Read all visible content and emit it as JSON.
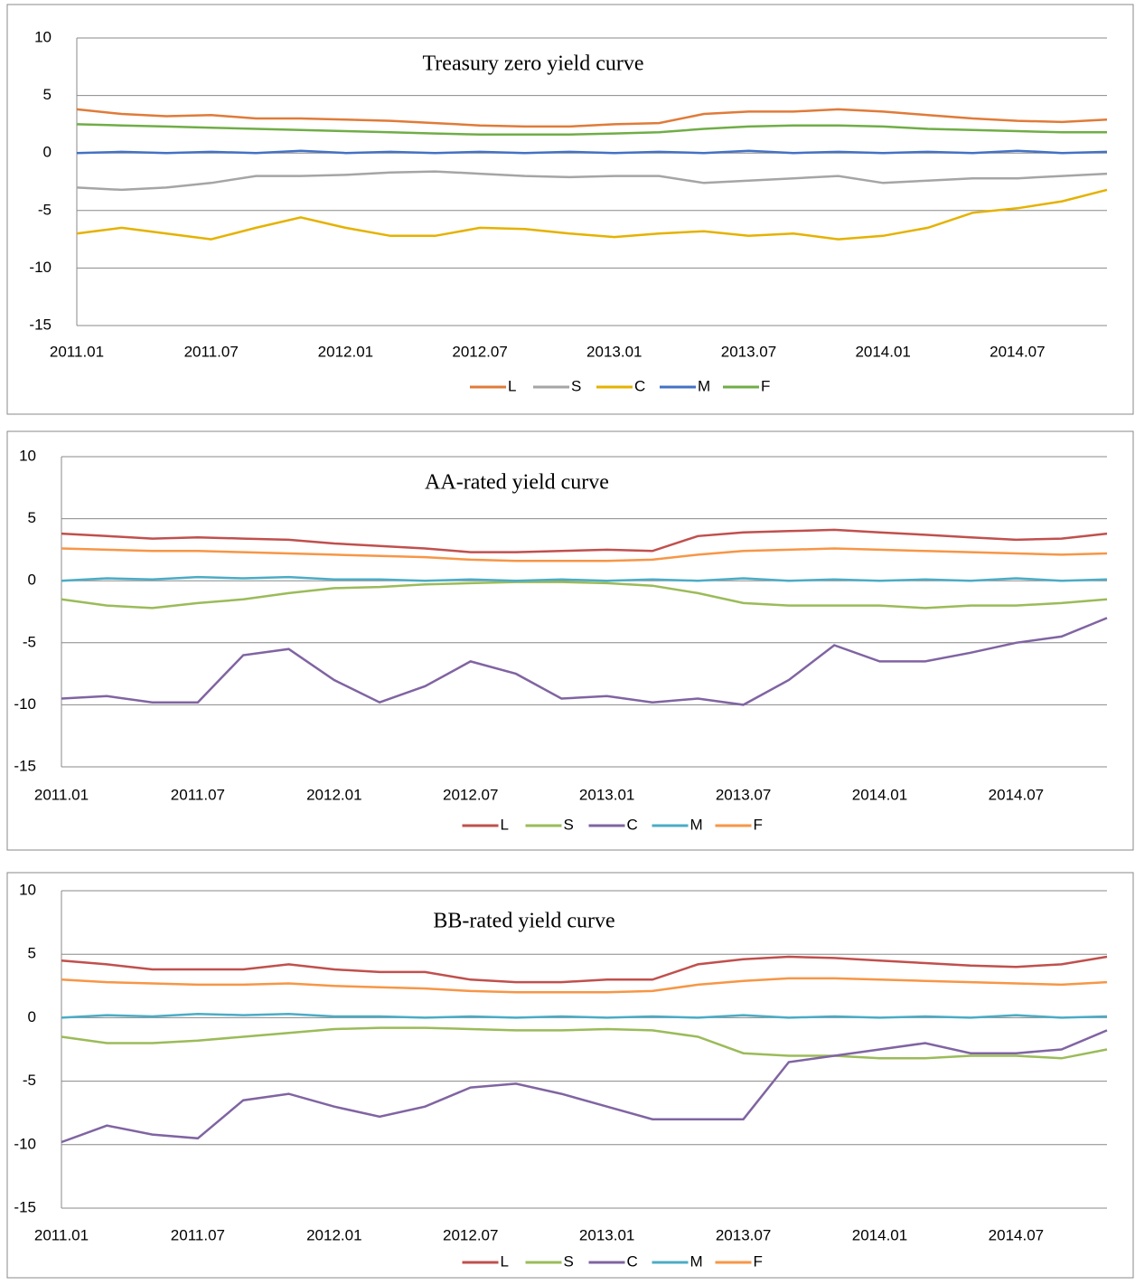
{
  "chart_data": [
    {
      "type": "line",
      "title": "Treasury zero yield curve",
      "categories": [
        "2011.01",
        null,
        null,
        "2011.07",
        null,
        null,
        "2012.01",
        null,
        null,
        "2012.07",
        null,
        null,
        "2013.01",
        null,
        null,
        "2013.07",
        null,
        null,
        "2014.01",
        null,
        null,
        "2014.07",
        null,
        null
      ],
      "ylim": [
        -15,
        10
      ],
      "yticks": [
        -15,
        -10,
        -5,
        0,
        5,
        10
      ],
      "grid": true,
      "legend": "bottom",
      "series": [
        {
          "name": "L",
          "color": "#e07b39",
          "values": [
            3.8,
            3.4,
            3.2,
            3.3,
            3.0,
            3.0,
            2.9,
            2.8,
            2.6,
            2.4,
            2.3,
            2.3,
            2.5,
            2.6,
            3.4,
            3.6,
            3.6,
            3.8,
            3.6,
            3.3,
            3.0,
            2.8,
            2.7,
            2.9
          ]
        },
        {
          "name": "S",
          "color": "#a5a5a5",
          "values": [
            -3.0,
            -3.2,
            -3.0,
            -2.6,
            -2.0,
            -2.0,
            -1.9,
            -1.7,
            -1.6,
            -1.8,
            -2.0,
            -2.1,
            -2.0,
            -2.0,
            -2.6,
            -2.4,
            -2.2,
            -2.0,
            -2.6,
            -2.4,
            -2.2,
            -2.2,
            -2.0,
            -1.8
          ]
        },
        {
          "name": "C",
          "color": "#e5b200",
          "values": [
            -7.0,
            -6.5,
            -7.0,
            -7.5,
            -6.5,
            -5.6,
            -6.5,
            -7.2,
            -7.2,
            -6.5,
            -6.6,
            -7.0,
            -7.3,
            -7.0,
            -6.8,
            -7.2,
            -7.0,
            -7.5,
            -7.2,
            -6.5,
            -5.2,
            -4.8,
            -4.2,
            -3.2
          ]
        },
        {
          "name": "M",
          "color": "#4472c4",
          "values": [
            0,
            0.1,
            0,
            0.1,
            0,
            0.2,
            0,
            0.1,
            0,
            0.1,
            0,
            0.1,
            0,
            0.1,
            0,
            0.2,
            0,
            0.1,
            0,
            0.1,
            0,
            0.2,
            0,
            0.1
          ]
        },
        {
          "name": "F",
          "color": "#70ad47",
          "values": [
            2.5,
            2.4,
            2.3,
            2.2,
            2.1,
            2.0,
            1.9,
            1.8,
            1.7,
            1.6,
            1.6,
            1.6,
            1.7,
            1.8,
            2.1,
            2.3,
            2.4,
            2.4,
            2.3,
            2.1,
            2.0,
            1.9,
            1.8,
            1.8
          ]
        }
      ]
    },
    {
      "type": "line",
      "title": "AA-rated yield curve",
      "categories": [
        "2011.01",
        null,
        null,
        "2011.07",
        null,
        null,
        "2012.01",
        null,
        null,
        "2012.07",
        null,
        null,
        "2013.01",
        null,
        null,
        "2013.07",
        null,
        null,
        "2014.01",
        null,
        null,
        "2014.07",
        null,
        null
      ],
      "ylim": [
        -15,
        10
      ],
      "yticks": [
        -15,
        -10,
        -5,
        0,
        5,
        10
      ],
      "grid": true,
      "legend": "bottom",
      "series": [
        {
          "name": "L",
          "color": "#c0504d",
          "values": [
            3.8,
            3.6,
            3.4,
            3.5,
            3.4,
            3.3,
            3.0,
            2.8,
            2.6,
            2.3,
            2.3,
            2.4,
            2.5,
            2.4,
            3.6,
            3.9,
            4.0,
            4.1,
            3.9,
            3.7,
            3.5,
            3.3,
            3.4,
            3.8
          ]
        },
        {
          "name": "S",
          "color": "#9bbb59",
          "values": [
            -1.5,
            -2.0,
            -2.2,
            -1.8,
            -1.5,
            -1.0,
            -0.6,
            -0.5,
            -0.3,
            -0.2,
            -0.1,
            -0.1,
            -0.2,
            -0.4,
            -1.0,
            -1.8,
            -2.0,
            -2.0,
            -2.0,
            -2.2,
            -2.0,
            -2.0,
            -1.8,
            -1.5
          ]
        },
        {
          "name": "C",
          "color": "#8064a2",
          "values": [
            -9.5,
            -9.3,
            -9.8,
            -9.8,
            -6.0,
            -5.5,
            -8.0,
            -9.8,
            -8.5,
            -6.5,
            -7.5,
            -9.5,
            -9.3,
            -9.8,
            -9.5,
            -10.0,
            -8.0,
            -5.2,
            -6.5,
            -6.5,
            -5.8,
            -5.0,
            -4.5,
            -3.0
          ]
        },
        {
          "name": "M",
          "color": "#4bacc6",
          "values": [
            0,
            0.2,
            0.1,
            0.3,
            0.2,
            0.3,
            0.1,
            0.1,
            0,
            0.1,
            0,
            0.1,
            0,
            0.1,
            0,
            0.2,
            0,
            0.1,
            0,
            0.1,
            0,
            0.2,
            0,
            0.1
          ]
        },
        {
          "name": "F",
          "color": "#f79646",
          "values": [
            2.6,
            2.5,
            2.4,
            2.4,
            2.3,
            2.2,
            2.1,
            2.0,
            1.9,
            1.7,
            1.6,
            1.6,
            1.6,
            1.7,
            2.1,
            2.4,
            2.5,
            2.6,
            2.5,
            2.4,
            2.3,
            2.2,
            2.1,
            2.2
          ]
        }
      ]
    },
    {
      "type": "line",
      "title": "BB-rated yield curve",
      "categories": [
        "2011.01",
        null,
        null,
        "2011.07",
        null,
        null,
        "2012.01",
        null,
        null,
        "2012.07",
        null,
        null,
        "2013.01",
        null,
        null,
        "2013.07",
        null,
        null,
        "2014.01",
        null,
        null,
        "2014.07",
        null,
        null
      ],
      "ylim": [
        -15,
        10
      ],
      "yticks": [
        -15,
        -10,
        -5,
        0,
        5,
        10
      ],
      "grid": true,
      "legend": "bottom",
      "series": [
        {
          "name": "L",
          "color": "#c0504d",
          "values": [
            4.5,
            4.2,
            3.8,
            3.8,
            3.8,
            4.2,
            3.8,
            3.6,
            3.6,
            3.0,
            2.8,
            2.8,
            3.0,
            3.0,
            4.2,
            4.6,
            4.8,
            4.7,
            4.5,
            4.3,
            4.1,
            4.0,
            4.2,
            4.8
          ]
        },
        {
          "name": "S",
          "color": "#9bbb59",
          "values": [
            -1.5,
            -2.0,
            -2.0,
            -1.8,
            -1.5,
            -1.2,
            -0.9,
            -0.8,
            -0.8,
            -0.9,
            -1.0,
            -1.0,
            -0.9,
            -1.0,
            -1.5,
            -2.8,
            -3.0,
            -3.0,
            -3.2,
            -3.2,
            -3.0,
            -3.0,
            -3.2,
            -2.5
          ]
        },
        {
          "name": "C",
          "color": "#8064a2",
          "values": [
            -9.8,
            -8.5,
            -9.2,
            -9.5,
            -6.5,
            -6.0,
            -7.0,
            -7.8,
            -7.0,
            -5.5,
            -5.2,
            -6.0,
            -7.0,
            -8.0,
            -8.0,
            -8.0,
            -3.5,
            -3.0,
            -2.5,
            -2.0,
            -2.8,
            -2.8,
            -2.5,
            -1.0
          ]
        },
        {
          "name": "M",
          "color": "#4bacc6",
          "values": [
            0,
            0.2,
            0.1,
            0.3,
            0.2,
            0.3,
            0.1,
            0.1,
            0,
            0.1,
            0,
            0.1,
            0,
            0.1,
            0,
            0.2,
            0,
            0.1,
            0,
            0.1,
            0,
            0.2,
            0,
            0.1
          ]
        },
        {
          "name": "F",
          "color": "#f79646",
          "values": [
            3.0,
            2.8,
            2.7,
            2.6,
            2.6,
            2.7,
            2.5,
            2.4,
            2.3,
            2.1,
            2.0,
            2.0,
            2.0,
            2.1,
            2.6,
            2.9,
            3.1,
            3.1,
            3.0,
            2.9,
            2.8,
            2.7,
            2.6,
            2.8
          ]
        }
      ]
    }
  ]
}
